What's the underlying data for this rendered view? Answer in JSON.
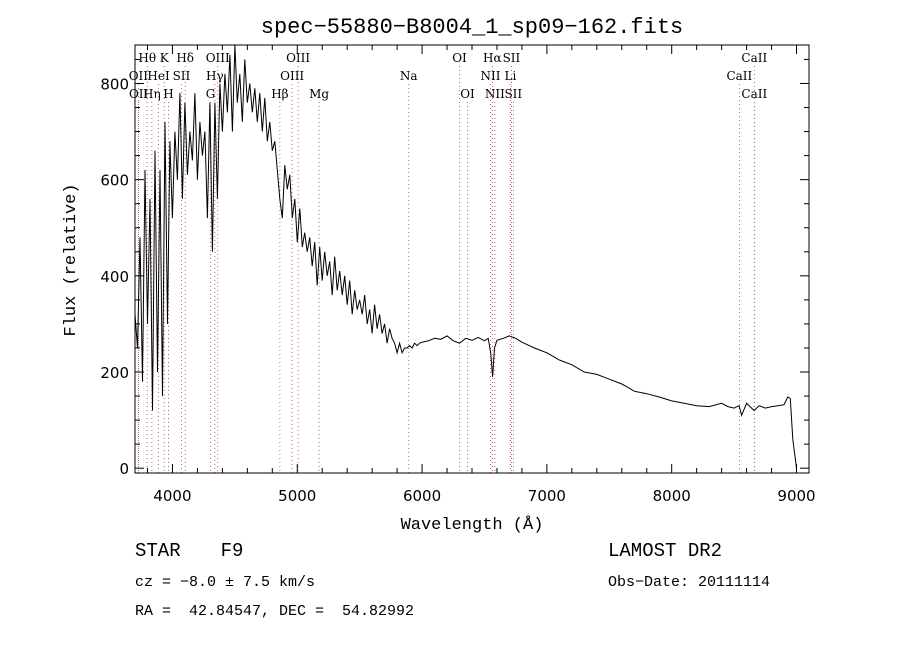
{
  "chart_data": {
    "type": "line",
    "title": "spec−55880−B8004_1_sp09−162.fits",
    "xlabel": "Wavelength (Å)",
    "ylabel": "Flux (relative)",
    "xlim": [
      3700,
      9100
    ],
    "ylim": [
      -10,
      880
    ],
    "xticks": [
      4000,
      5000,
      6000,
      7000,
      8000,
      9000
    ],
    "yticks": [
      0,
      200,
      400,
      600,
      800
    ],
    "grid": false,
    "series": [
      {
        "x": [
          3700,
          3720,
          3740,
          3760,
          3780,
          3800,
          3820,
          3840,
          3860,
          3880,
          3900,
          3920,
          3940,
          3960,
          3980,
          4000,
          4020,
          4040,
          4060,
          4080,
          4100,
          4120,
          4140,
          4160,
          4180,
          4200,
          4220,
          4240,
          4260,
          4280,
          4300,
          4320,
          4340,
          4360,
          4380,
          4400,
          4420,
          4440,
          4460,
          4480,
          4500,
          4520,
          4540,
          4560,
          4580,
          4600,
          4620,
          4640,
          4660,
          4680,
          4700,
          4720,
          4740,
          4760,
          4780,
          4800,
          4820,
          4840,
          4860,
          4880,
          4900,
          4920,
          4940,
          4960,
          4980,
          5000,
          5020,
          5040,
          5060,
          5080,
          5100,
          5120,
          5140,
          5160,
          5180,
          5200,
          5220,
          5240,
          5260,
          5280,
          5300,
          5320,
          5340,
          5360,
          5380,
          5400,
          5420,
          5440,
          5460,
          5480,
          5500,
          5520,
          5540,
          5560,
          5580,
          5600,
          5620,
          5640,
          5660,
          5680,
          5700,
          5720,
          5740,
          5760,
          5780,
          5800,
          5820,
          5840,
          5860,
          5880,
          5900,
          5920,
          5940,
          5960,
          5980,
          6000,
          6050,
          6100,
          6150,
          6200,
          6250,
          6300,
          6350,
          6400,
          6450,
          6500,
          6530,
          6550,
          6565,
          6580,
          6600,
          6650,
          6700,
          6750,
          6800,
          6850,
          6900,
          6950,
          7000,
          7100,
          7200,
          7300,
          7400,
          7500,
          7600,
          7650,
          7700,
          7800,
          7900,
          8000,
          8100,
          8200,
          8300,
          8400,
          8450,
          8500,
          8540,
          8560,
          8600,
          8640,
          8660,
          8700,
          8750,
          8800,
          8850,
          8900,
          8930,
          8950,
          8970,
          9000
        ],
        "y": [
          320,
          250,
          480,
          180,
          620,
          300,
          560,
          120,
          660,
          200,
          620,
          150,
          720,
          300,
          680,
          520,
          700,
          600,
          780,
          560,
          760,
          610,
          700,
          640,
          780,
          600,
          720,
          650,
          700,
          520,
          760,
          450,
          760,
          560,
          800,
          700,
          820,
          740,
          860,
          700,
          880,
          760,
          820,
          720,
          850,
          760,
          800,
          740,
          790,
          720,
          780,
          700,
          770,
          680,
          720,
          660,
          680,
          620,
          560,
          520,
          630,
          580,
          610,
          520,
          560,
          470,
          540,
          460,
          490,
          450,
          480,
          420,
          470,
          380,
          460,
          390,
          450,
          400,
          430,
          360,
          440,
          370,
          410,
          360,
          400,
          340,
          390,
          320,
          370,
          330,
          350,
          320,
          360,
          300,
          330,
          280,
          340,
          290,
          320,
          280,
          300,
          260,
          290,
          270,
          260,
          240,
          260,
          240,
          250,
          250,
          255,
          250,
          260,
          255,
          260,
          262,
          265,
          270,
          268,
          275,
          265,
          260,
          270,
          266,
          272,
          265,
          270,
          240,
          190,
          250,
          266,
          270,
          275,
          270,
          262,
          256,
          250,
          245,
          240,
          225,
          215,
          200,
          195,
          185,
          175,
          168,
          160,
          155,
          148,
          140,
          135,
          130,
          128,
          135,
          128,
          125,
          130,
          110,
          135,
          125,
          120,
          130,
          125,
          128,
          130,
          132,
          148,
          145,
          60,
          0
        ]
      }
    ],
    "line_markers": [
      {
        "label": "Hθ",
        "wave": 3798,
        "row": 1
      },
      {
        "label": "K",
        "wave": 3934,
        "row": 1
      },
      {
        "label": "Hδ",
        "wave": 4102,
        "row": 1
      },
      {
        "label": "OIII",
        "wave": 4363,
        "row": 1
      },
      {
        "label": "OIII",
        "wave": 5007,
        "row": 1
      },
      {
        "label": "OI",
        "wave": 6300,
        "row": 1
      },
      {
        "label": "Hα",
        "wave": 6563,
        "row": 1
      },
      {
        "label": "SII",
        "wave": 6716,
        "row": 1
      },
      {
        "label": "CaII",
        "wave": 8662,
        "row": 1
      },
      {
        "label": "OII",
        "wave": 3727,
        "row": 2
      },
      {
        "label": "HeI",
        "wave": 3889,
        "row": 2
      },
      {
        "label": "SII",
        "wave": 4072,
        "row": 2
      },
      {
        "label": "Hγ",
        "wave": 4340,
        "row": 2
      },
      {
        "label": "OIII",
        "wave": 4959,
        "row": 2
      },
      {
        "label": "Na",
        "wave": 5893,
        "row": 2
      },
      {
        "label": "NII",
        "wave": 6548,
        "row": 2
      },
      {
        "label": "Li",
        "wave": 6708,
        "row": 2
      },
      {
        "label": "CaII",
        "wave": 8542,
        "row": 2
      },
      {
        "label": "OII",
        "wave": 3729,
        "row": 3
      },
      {
        "label": "Hη",
        "wave": 3835,
        "row": 3
      },
      {
        "label": "H",
        "wave": 3968,
        "row": 3
      },
      {
        "label": "G",
        "wave": 4305,
        "row": 3
      },
      {
        "label": "Hβ",
        "wave": 4861,
        "row": 3
      },
      {
        "label": "Mg",
        "wave": 5175,
        "row": 3
      },
      {
        "label": "OI",
        "wave": 6364,
        "row": 3
      },
      {
        "label": "NII",
        "wave": 6583,
        "row": 3
      },
      {
        "label": "SII",
        "wave": 6731,
        "row": 3
      },
      {
        "label": "CaII",
        "wave": 8662,
        "row": 3
      }
    ]
  },
  "info": {
    "object_class": "STAR",
    "subclass": "F9",
    "survey": "LAMOST DR2",
    "redshift": "cz = −8.0 ± 7.5 km/s",
    "obs_date": "Obs−Date: 20111114",
    "coordinates": "RA =  42.84547, DEC =  54.82992"
  },
  "colors": {
    "spectrum": "#000000",
    "axes": "#000000",
    "line_markers": "#c04040",
    "background": "#ffffff"
  }
}
